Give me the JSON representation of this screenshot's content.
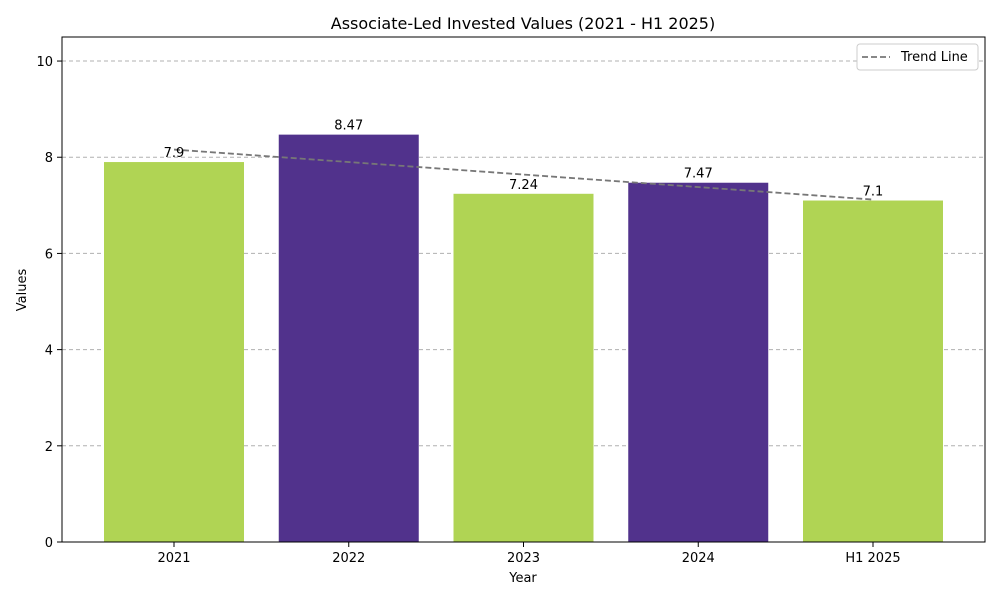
{
  "chart_data": {
    "type": "bar",
    "title": "Associate-Led Invested Values (2021 - H1 2025)",
    "xlabel": "Year",
    "ylabel": "Values",
    "categories": [
      "2021",
      "2022",
      "2023",
      "2024",
      "H1 2025"
    ],
    "values": [
      7.9,
      8.47,
      7.24,
      7.47,
      7.1
    ],
    "value_labels": [
      "7.9",
      "8.47",
      "7.24",
      "7.47",
      "7.1"
    ],
    "bar_colors": [
      "#b0d454",
      "#51328c",
      "#b0d454",
      "#51328c",
      "#b0d454"
    ],
    "ylim": [
      0,
      10.5
    ],
    "yticks": [
      0,
      2,
      4,
      6,
      8,
      10
    ],
    "ytick_labels": [
      "0",
      "2",
      "4",
      "6",
      "8",
      "10"
    ],
    "grid": "y-dashed",
    "trend_line": {
      "name": "Trend Line",
      "start": 8.16,
      "end": 7.12,
      "color": "#777777",
      "style": "dashed"
    },
    "legend": {
      "position": "top-right",
      "entries": [
        "Trend Line"
      ]
    }
  }
}
